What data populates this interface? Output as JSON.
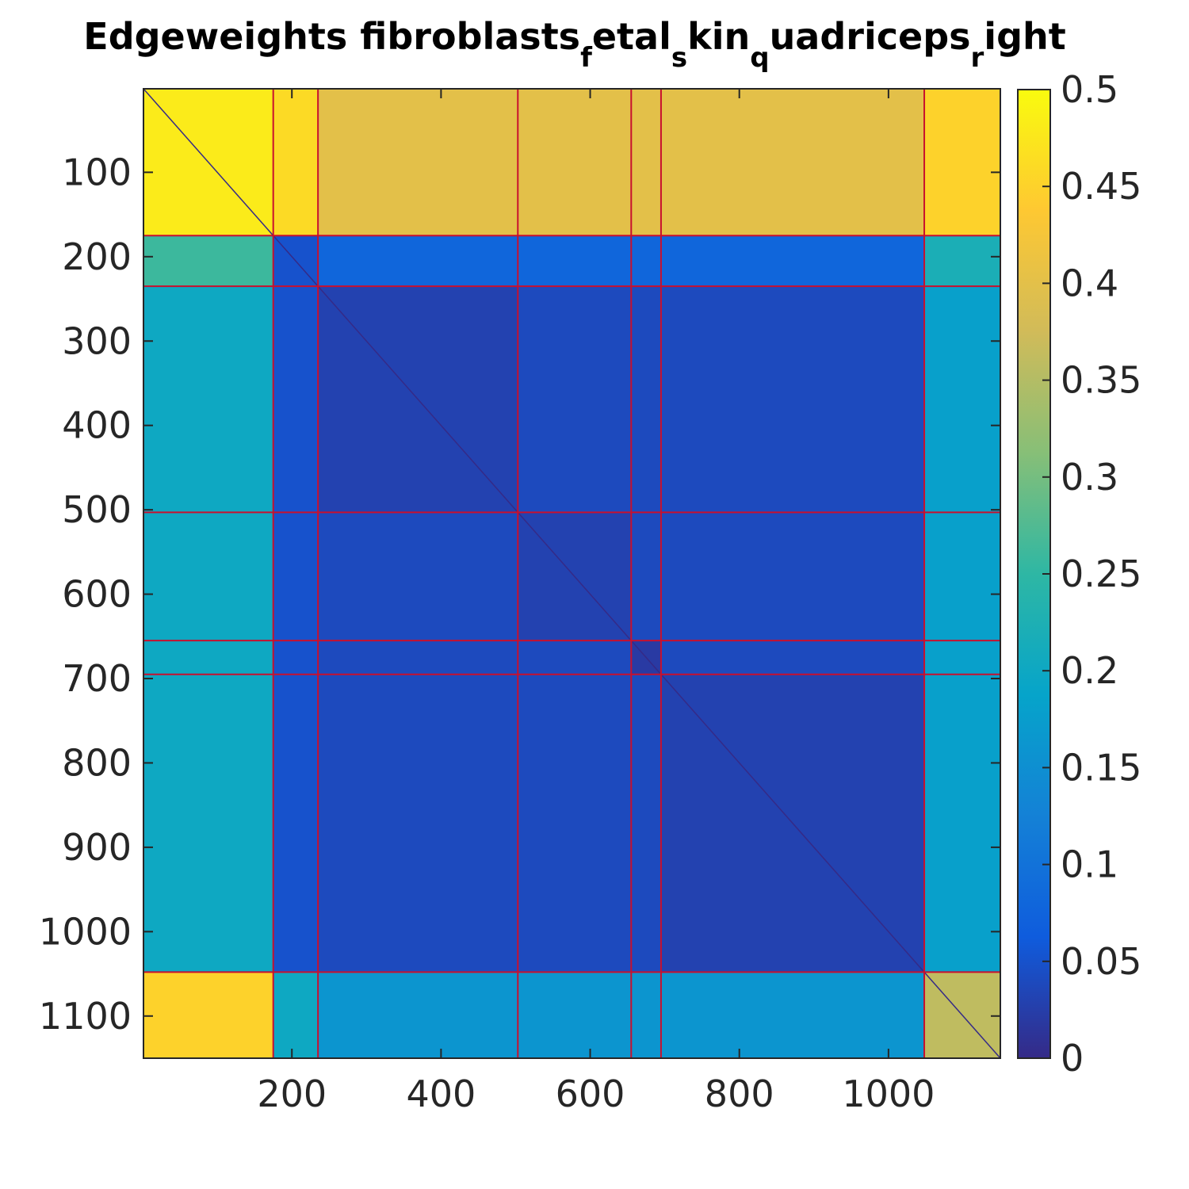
{
  "chart_data": {
    "type": "heatmap",
    "title": {
      "segments": [
        {
          "text": "Edgeweights fibroblasts",
          "sub": false
        },
        {
          "text": "f",
          "sub": true
        },
        {
          "text": "etal",
          "sub": false
        },
        {
          "text": "s",
          "sub": true
        },
        {
          "text": "kin",
          "sub": false
        },
        {
          "text": "q",
          "sub": true
        },
        {
          "text": "uadriceps",
          "sub": false
        },
        {
          "text": "r",
          "sub": true
        },
        {
          "text": "ight",
          "sub": false
        }
      ]
    },
    "xlabel": "",
    "ylabel": "",
    "xlim": [
      1,
      1150
    ],
    "ylim": [
      1,
      1150
    ],
    "y_reversed": true,
    "x_ticks": [
      200,
      400,
      600,
      800,
      1000
    ],
    "x_tick_labels": [
      "200",
      "400",
      "600",
      "800",
      "1000"
    ],
    "y_ticks": [
      100,
      200,
      300,
      400,
      500,
      600,
      700,
      800,
      900,
      1000,
      1100
    ],
    "y_tick_labels": [
      "100",
      "200",
      "300",
      "400",
      "500",
      "600",
      "700",
      "800",
      "900",
      "1000",
      "1100"
    ],
    "colormap": "parula",
    "colorbar": {
      "range": [
        0,
        0.5
      ],
      "ticks": [
        0,
        0.05,
        0.1,
        0.15,
        0.2,
        0.25,
        0.3,
        0.35,
        0.4,
        0.45,
        0.5
      ],
      "tick_labels": [
        "0",
        "0.05",
        "0.1",
        "0.15",
        "0.2",
        "0.25",
        "0.3",
        "0.35",
        "0.4",
        "0.45",
        "0.5"
      ],
      "stops": [
        "#352a87",
        "#0f5cdd",
        "#1481d6",
        "#06a4ca",
        "#2eb7a4",
        "#87bf77",
        "#d1bb59",
        "#fec832",
        "#f9fb0e"
      ]
    },
    "cluster_boundaries": [
      175,
      235,
      503,
      655,
      695,
      1048
    ],
    "boundary_color": "#c8102e",
    "block_values": [
      [
        0.48,
        0.46,
        0.4,
        0.4,
        0.4,
        0.4,
        0.45
      ],
      [
        0.26,
        0.05,
        0.08,
        0.08,
        0.08,
        0.08,
        0.22
      ],
      [
        0.2,
        0.05,
        0.03,
        0.04,
        0.04,
        0.04,
        0.18
      ],
      [
        0.2,
        0.05,
        0.04,
        0.03,
        0.04,
        0.04,
        0.18
      ],
      [
        0.2,
        0.05,
        0.04,
        0.04,
        0.02,
        0.04,
        0.18
      ],
      [
        0.2,
        0.05,
        0.04,
        0.04,
        0.04,
        0.03,
        0.18
      ],
      [
        0.45,
        0.2,
        0.16,
        0.16,
        0.16,
        0.16,
        0.36
      ]
    ],
    "diagonal_value": 0,
    "grid": false
  }
}
